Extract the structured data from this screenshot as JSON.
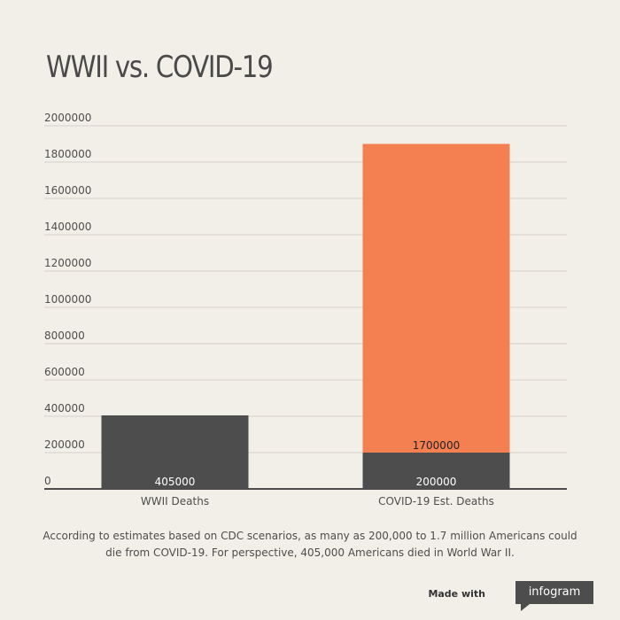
{
  "title": "WWII vs. COVID-19",
  "chart_data": {
    "type": "bar",
    "stacked": true,
    "categories": [
      "WWII Deaths",
      "COVID-19 Est. Deaths"
    ],
    "series": [
      {
        "values": [
          405000,
          200000
        ],
        "color": "#4d4d4d",
        "label_color": "#ffffff"
      },
      {
        "values": [
          0,
          1700000
        ],
        "color": "#f47f51",
        "label_color": "#222222"
      }
    ],
    "ylim": [
      0,
      2000000
    ],
    "yticks": [
      "0",
      "200000",
      "400000",
      "600000",
      "800000",
      "1000000",
      "1200000",
      "1400000",
      "1600000",
      "1800000",
      "2000000"
    ],
    "grid": true
  },
  "caption": "According to estimates based on CDC scenarios, as many as 200,000 to 1.7 million Americans could die from COVID-19. For perspective, 405,000 Americans died in World War II.",
  "footer": {
    "made_with": "Made with",
    "brand": "infogram"
  }
}
